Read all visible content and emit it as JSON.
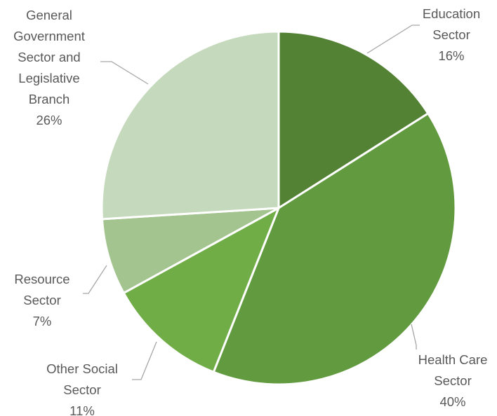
{
  "chart_data": {
    "type": "pie",
    "title": "",
    "categories": [
      "Education Sector",
      "Health Care Sector",
      "Other Social Sector",
      "Resource Sector",
      "General Government Sector and Legislative Branch"
    ],
    "values": [
      16,
      40,
      11,
      7,
      26
    ],
    "unit": "%",
    "data_labels": [
      {
        "lines": [
          "Education",
          "Sector"
        ],
        "percent": "16%"
      },
      {
        "lines": [
          "Health Care",
          "Sector"
        ],
        "percent": "40%"
      },
      {
        "lines": [
          "Other Social",
          "Sector"
        ],
        "percent": "11%"
      },
      {
        "lines": [
          "Resource",
          "Sector"
        ],
        "percent": "7%"
      },
      {
        "lines": [
          "General",
          "Government",
          "Sector and",
          "Legislative",
          "Branch"
        ],
        "percent": "26%"
      }
    ],
    "colors": [
      "#548235",
      "#629b3f",
      "#70ad47",
      "#a3c48f",
      "#c5d9bc"
    ],
    "start_angle_deg": 0,
    "direction": "clockwise",
    "legend": "none"
  }
}
